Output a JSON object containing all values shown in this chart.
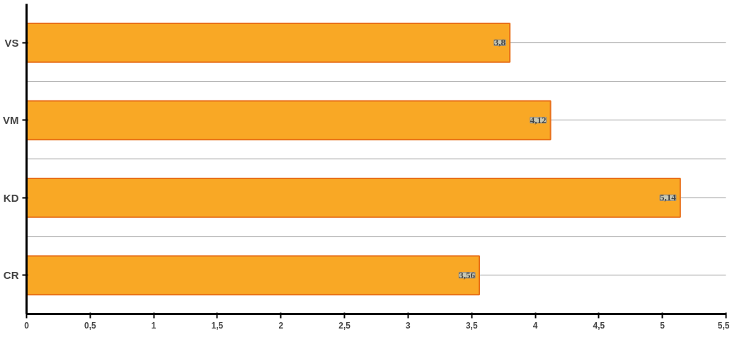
{
  "chart_data": {
    "type": "bar",
    "orientation": "horizontal",
    "categories": [
      "VS",
      "VM",
      "KD",
      "CR"
    ],
    "values": [
      3.8,
      4.12,
      5.14,
      3.56
    ],
    "value_labels": [
      "3,8",
      "4,12",
      "5,14",
      "3,56"
    ],
    "color": "#f9a825",
    "xlim": [
      0,
      5.5
    ],
    "xticks": [
      0,
      {
        "value": 0.5,
        "label": "0,5"
      },
      1,
      {
        "value": 1.5,
        "label": "1,5"
      },
      2,
      {
        "value": 2.5,
        "label": "2,5"
      },
      3,
      {
        "value": 3.5,
        "label": "3,5"
      },
      4,
      {
        "value": 4.5,
        "label": "4,5"
      },
      5,
      {
        "value": 5.5,
        "label": "5,5"
      }
    ],
    "grid": "y"
  }
}
